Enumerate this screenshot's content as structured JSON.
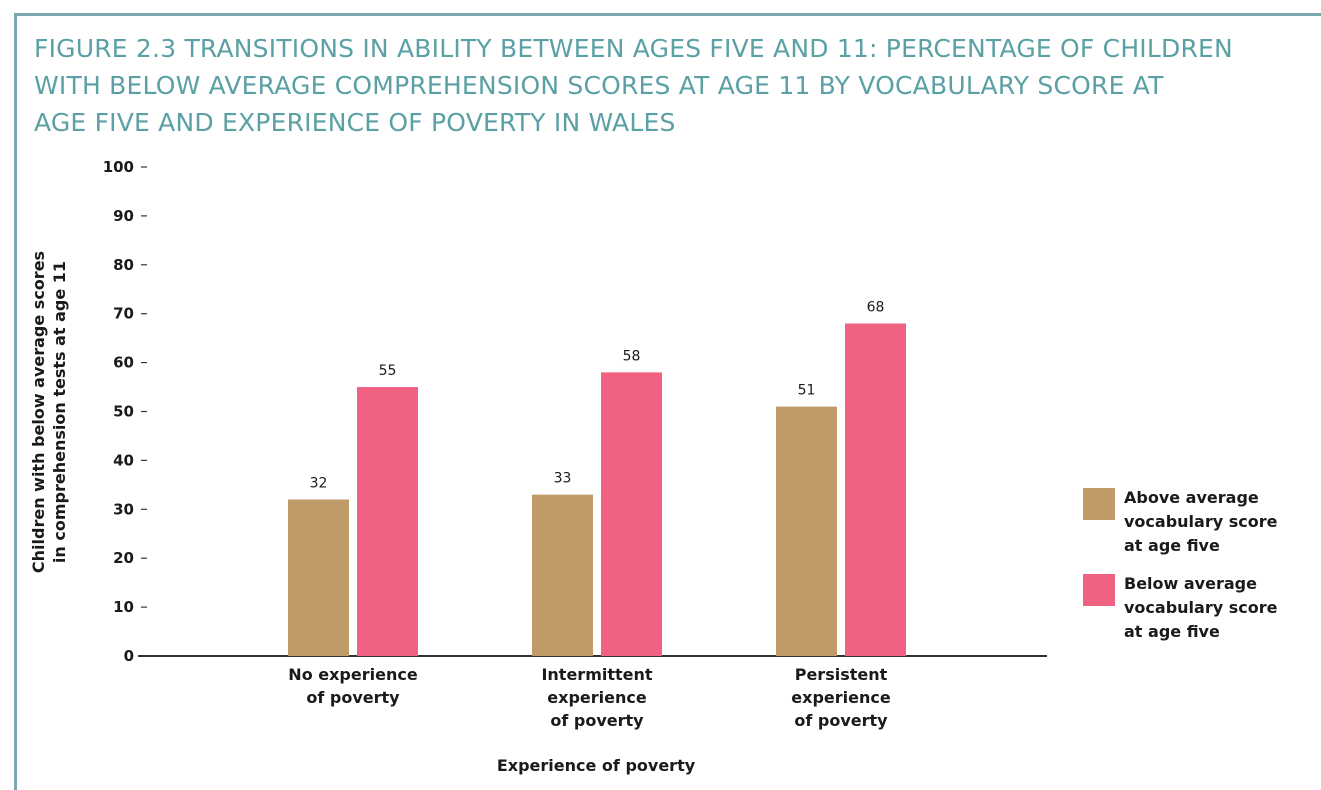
{
  "figure": {
    "title": "FIGURE 2.3  TRANSITIONS IN ABILITY BETWEEN AGES FIVE AND 11: PERCENTAGE OF CHILDREN\nWITH BELOW AVERAGE COMPREHENSION SCORES AT AGE 11 BY VOCABULARY SCORE AT\nAGE FIVE AND EXPERIENCE OF POVERTY IN WALES",
    "frame_color": "#7aa9ad",
    "title_color": "#5aa0a4"
  },
  "chart_data": {
    "type": "bar",
    "title": "FIGURE 2.3  TRANSITIONS IN ABILITY BETWEEN AGES FIVE AND 11: PERCENTAGE OF CHILDREN WITH BELOW AVERAGE COMPREHENSION SCORES AT AGE 11 BY VOCABULARY SCORE AT AGE FIVE AND EXPERIENCE OF POVERTY IN WALES",
    "xlabel": "Experience of poverty",
    "ylabel": "Children with below average scores\nin comprehension tests at age 11",
    "categories": [
      "No experience\nof poverty",
      "Intermittent\nexperience\nof poverty",
      "Persistent\nexperience\nof poverty"
    ],
    "series": [
      {
        "name": "Above average\nvocabulary score\nat age five",
        "color": "#c19b67",
        "values": [
          32,
          33,
          51
        ]
      },
      {
        "name": "Below average\nvocabulary score\nat age five",
        "color": "#f06182",
        "values": [
          55,
          58,
          68
        ]
      }
    ],
    "ylim": [
      0,
      100
    ],
    "yticks": [
      0,
      10,
      20,
      30,
      40,
      50,
      60,
      70,
      80,
      90,
      100
    ],
    "data_labels": true,
    "grid": false,
    "legend": "right"
  }
}
